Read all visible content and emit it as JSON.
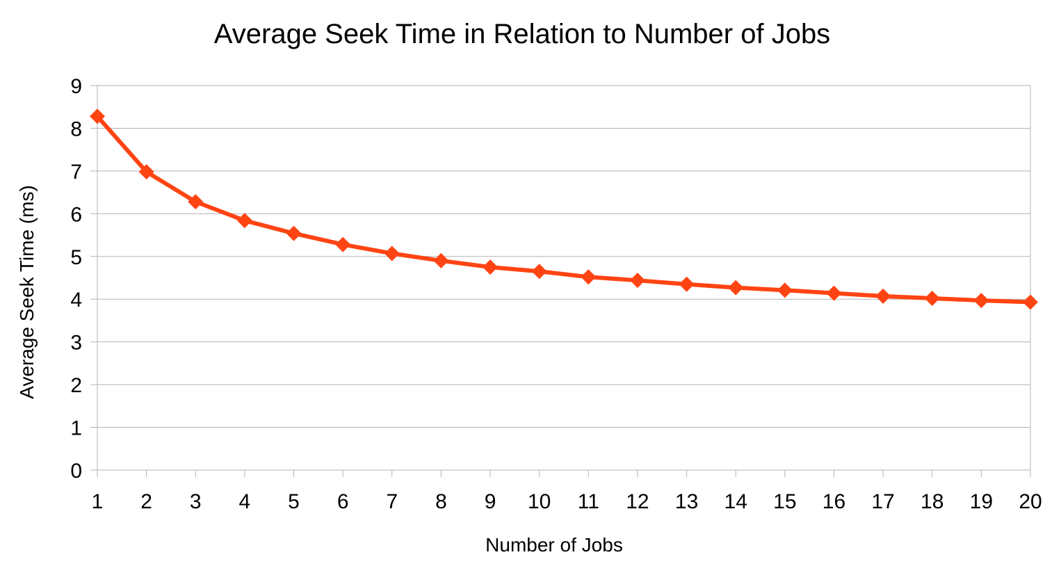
{
  "chart_data": {
    "type": "line",
    "title": "Average Seek Time in Relation to Number of Jobs",
    "xlabel": "Number of Jobs",
    "ylabel": "Average Seek Time (ms)",
    "x": [
      1,
      2,
      3,
      4,
      5,
      6,
      7,
      8,
      9,
      10,
      11,
      12,
      13,
      14,
      15,
      16,
      17,
      18,
      19,
      20
    ],
    "series": [
      {
        "values": [
          8.28,
          6.98,
          6.28,
          5.84,
          5.54,
          5.28,
          5.07,
          4.9,
          4.75,
          4.65,
          4.52,
          4.44,
          4.35,
          4.27,
          4.21,
          4.14,
          4.07,
          4.02,
          3.97,
          3.93
        ],
        "color": "#ff4413",
        "marker": "diamond"
      }
    ],
    "ylim": [
      0,
      9
    ],
    "yticks": [
      0,
      1,
      2,
      3,
      4,
      5,
      6,
      7,
      8,
      9
    ],
    "xticks": [
      1,
      2,
      3,
      4,
      5,
      6,
      7,
      8,
      9,
      10,
      11,
      12,
      13,
      14,
      15,
      16,
      17,
      18,
      19,
      20
    ],
    "grid": true,
    "legend": "none",
    "gridline_color": "#b3b3b3"
  }
}
